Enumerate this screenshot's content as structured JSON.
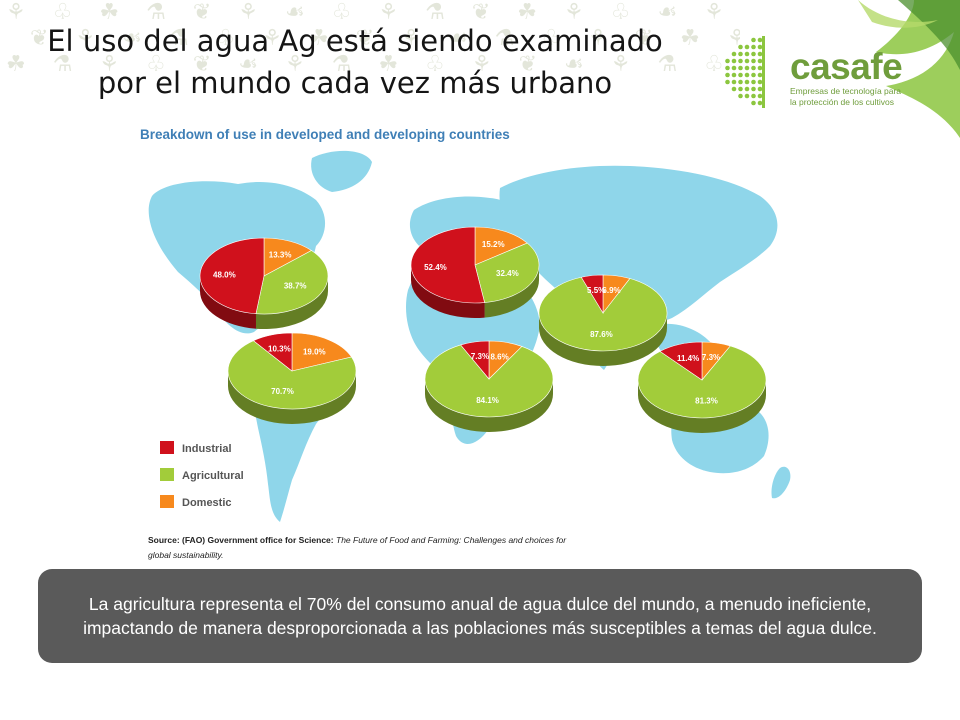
{
  "title": {
    "line1": "El uso del agua Ag está siendo examinado",
    "line2": "por el mundo cada vez más urbano"
  },
  "logo": {
    "name": "casafe",
    "tagline_line1": "Empresas de tecnología para",
    "tagline_line2": "la protección de los cultivos"
  },
  "source": {
    "prefix": "Source: (FAO) Government office for Science:",
    "italic": "The Future of Food and Farming: Challenges and choices for global sustainability."
  },
  "callout": {
    "text": "La agricultura representa el 70% del consumo anual de agua dulce del mundo, a menudo ineficiente, impactando de manera desproporcionada a las poblaciones más susceptibles a temas del agua dulce."
  },
  "colors": {
    "industrial": "#d0111c",
    "agricultural": "#a2cc3a",
    "domestic": "#f7891d",
    "map": "#8fd6ea",
    "chart_title": "#3f7fb6",
    "callout_bg": "#5a5a5a",
    "callout_text": "#ffffff",
    "logo_green": "#8cc63f",
    "logo_text": "#6f9d3c"
  },
  "icons": {
    "background": "plant-doodle-pattern",
    "logo_mark": "leaf-dots-icon",
    "map": "world-map"
  },
  "chart_data": {
    "type": "pie",
    "title": "Breakdown of use in developed and developing countries",
    "legend": [
      "Industrial",
      "Agricultural",
      "Domestic"
    ],
    "legend_position": "bottom-left",
    "pies": [
      {
        "id": "north-america",
        "values": {
          "industrial": 48.0,
          "agricultural": 38.7,
          "domestic": 13.3
        },
        "labels": {
          "industrial": "48.0%",
          "agricultural": "38.7%",
          "domestic": "13.3%"
        }
      },
      {
        "id": "latin-america",
        "values": {
          "industrial": 10.3,
          "agricultural": 70.7,
          "domestic": 19.0
        },
        "labels": {
          "industrial": "10.3%",
          "agricultural": "70.7%",
          "domestic": "19.0%"
        }
      },
      {
        "id": "europe",
        "values": {
          "industrial": 52.4,
          "agricultural": 32.4,
          "domestic": 15.2
        },
        "labels": {
          "industrial": "52.4%",
          "agricultural": "32.4%",
          "domestic": "15.2%"
        }
      },
      {
        "id": "africa",
        "values": {
          "industrial": 7.3,
          "agricultural": 84.1,
          "domestic": 8.6
        },
        "labels": {
          "industrial": "7.3%",
          "agricultural": "84.1%",
          "domestic": "8.6%"
        }
      },
      {
        "id": "asia",
        "values": {
          "industrial": 5.5,
          "agricultural": 87.6,
          "domestic": 6.9
        },
        "labels": {
          "industrial": "5.5%",
          "agricultural": "87.6%",
          "domestic": "6.9%"
        }
      },
      {
        "id": "oceania",
        "values": {
          "industrial": 11.4,
          "agricultural": 81.3,
          "domestic": 7.3
        },
        "labels": {
          "industrial": "11.4%",
          "agricultural": "81.3%",
          "domestic": "7.3%"
        }
      }
    ]
  }
}
